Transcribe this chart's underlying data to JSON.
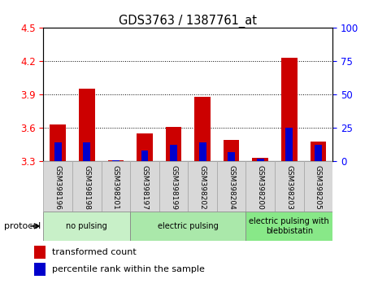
{
  "title": "GDS3763 / 1387761_at",
  "samples": [
    "GSM398196",
    "GSM398198",
    "GSM398201",
    "GSM398197",
    "GSM398199",
    "GSM398202",
    "GSM398204",
    "GSM398200",
    "GSM398203",
    "GSM398205"
  ],
  "red_values": [
    3.63,
    3.95,
    3.31,
    3.55,
    3.605,
    3.88,
    3.49,
    3.33,
    4.23,
    3.48
  ],
  "percentile_values": [
    14,
    14,
    1,
    8,
    12,
    14,
    7,
    2,
    25,
    12
  ],
  "ylim_left": [
    3.3,
    4.5
  ],
  "ylim_right": [
    0,
    100
  ],
  "yticks_left": [
    3.3,
    3.6,
    3.9,
    4.2,
    4.5
  ],
  "yticks_right": [
    0,
    25,
    50,
    75,
    100
  ],
  "groups": [
    {
      "label": "no pulsing",
      "start": 0,
      "end": 3
    },
    {
      "label": "electric pulsing",
      "start": 3,
      "end": 7
    },
    {
      "label": "electric pulsing with\nblebbistatin",
      "start": 7,
      "end": 10
    }
  ],
  "group_colors": [
    "#c8f0c8",
    "#aae8aa",
    "#88e888"
  ],
  "protocol_label": "protocol",
  "legend_red": "transformed count",
  "legend_blue": "percentile rank within the sample",
  "bar_color_red": "#cc0000",
  "bar_color_blue": "#0000cc",
  "base": 3.3,
  "bar_width": 0.55
}
